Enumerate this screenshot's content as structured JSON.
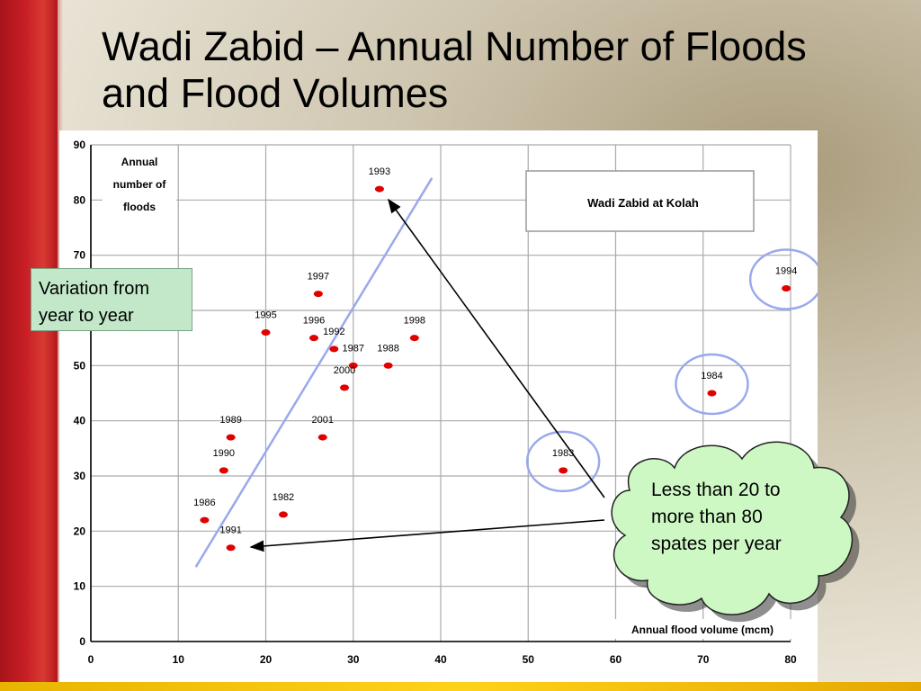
{
  "title": "Wadi Zabid – Annual Number of Floods and Flood Volumes",
  "callouts": {
    "variation": "Variation from year to year",
    "cloud": "Less than 20 to more than 80 spates per year"
  },
  "colors": {
    "accent_bar": "#c81f25",
    "point": "#e00000",
    "trend": "#9ba8ec",
    "callout_fill": "#c3e8c9",
    "cloud_fill": "#cdf8c4"
  },
  "chart_data": {
    "type": "scatter",
    "ylabel": "Annual number of floods",
    "xlabel": "Annual flood volume  (mcm)",
    "legend_box": "Wadi Zabid at Kolah",
    "xlim": [
      0,
      80
    ],
    "ylim": [
      0,
      90
    ],
    "xticks": [
      "0",
      "10",
      "20",
      "30",
      "40",
      "50",
      "60",
      "70",
      "80"
    ],
    "yticks": [
      "0",
      "10",
      "20",
      "30",
      "40",
      "50",
      "60",
      "70",
      "80",
      "90"
    ],
    "grid": true,
    "points": [
      {
        "label": "1993",
        "x": 33,
        "y": 82
      },
      {
        "label": "1997",
        "x": 26,
        "y": 63
      },
      {
        "label": "1995",
        "x": 20,
        "y": 56
      },
      {
        "label": "1996",
        "x": 25.5,
        "y": 55
      },
      {
        "label": "1992",
        "x": 27.8,
        "y": 53
      },
      {
        "label": "1998",
        "x": 37,
        "y": 55
      },
      {
        "label": "1987",
        "x": 30,
        "y": 50
      },
      {
        "label": "1988",
        "x": 34,
        "y": 50
      },
      {
        "label": "2000",
        "x": 29,
        "y": 46
      },
      {
        "label": "1989",
        "x": 16,
        "y": 37
      },
      {
        "label": "2001",
        "x": 26.5,
        "y": 37
      },
      {
        "label": "1990",
        "x": 15.2,
        "y": 31
      },
      {
        "label": "1986",
        "x": 13,
        "y": 22
      },
      {
        "label": "1982",
        "x": 22,
        "y": 23
      },
      {
        "label": "1991",
        "x": 16,
        "y": 17
      },
      {
        "label": "1983",
        "x": 54,
        "y": 31
      },
      {
        "label": "1984",
        "x": 71,
        "y": 45
      },
      {
        "label": "1994",
        "x": 79.5,
        "y": 64
      }
    ],
    "circled_years": [
      "1983",
      "1984",
      "1994"
    ],
    "trend_line": [
      {
        "x": 12,
        "y": 13.5
      },
      {
        "x": 39,
        "y": 84
      }
    ]
  }
}
